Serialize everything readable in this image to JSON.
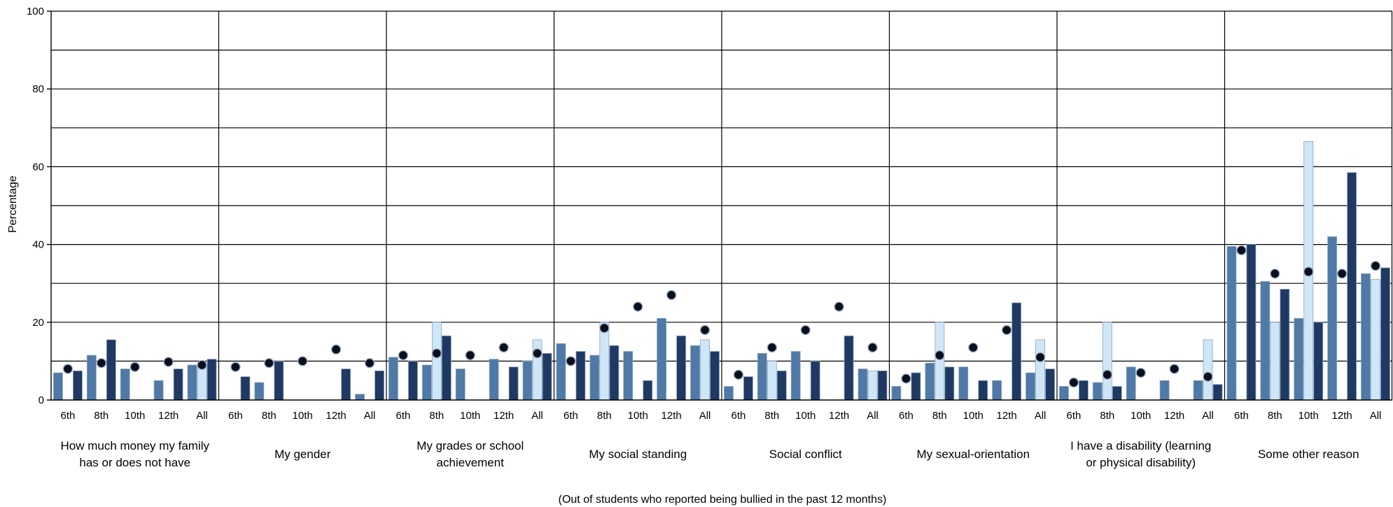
{
  "chart_data": {
    "type": "bar",
    "ylabel": "Percentage",
    "xlabel": "(Out of students who reported being bullied in the past 12 months)",
    "ylim": [
      0,
      100
    ],
    "yticks": [
      "0",
      "20",
      "40",
      "60",
      "80",
      "100"
    ],
    "grid": true,
    "grades": [
      "6th",
      "8th",
      "10th",
      "12th",
      "All"
    ],
    "bar_colors": [
      "#4f79a6",
      "#cfe6f6",
      "#1f3963"
    ],
    "marker_color": "#0a0f1e",
    "groups": [
      {
        "label": [
          "How much money my family",
          "has or does not have"
        ],
        "bars": [
          [
            7,
            0,
            7.5
          ],
          [
            11.5,
            0,
            15.5
          ],
          [
            8,
            0,
            0
          ],
          [
            5,
            0,
            8
          ],
          [
            9,
            8.5,
            10.5
          ]
        ],
        "markers": [
          8,
          9.5,
          8.5,
          9.8,
          9
        ]
      },
      {
        "label": [
          "My gender"
        ],
        "bars": [
          [
            0,
            0,
            6
          ],
          [
            4.5,
            0,
            10
          ],
          [
            0,
            0,
            0
          ],
          [
            0,
            0,
            8
          ],
          [
            1.5,
            0,
            7.5
          ]
        ],
        "markers": [
          8.5,
          9.5,
          10,
          13,
          9.5
        ]
      },
      {
        "label": [
          "My grades or school",
          "achievement"
        ],
        "bars": [
          [
            11,
            0,
            10
          ],
          [
            9,
            20,
            16.5
          ],
          [
            8,
            0,
            0
          ],
          [
            10.5,
            0,
            8.5
          ],
          [
            10,
            15.5,
            12
          ]
        ],
        "markers": [
          11.5,
          12,
          11.5,
          13.5,
          12
        ]
      },
      {
        "label": [
          "My social standing"
        ],
        "bars": [
          [
            14.5,
            0,
            12.5
          ],
          [
            11.5,
            20,
            14
          ],
          [
            12.5,
            0,
            5
          ],
          [
            21,
            0,
            16.5
          ],
          [
            14,
            15.5,
            12.5
          ]
        ],
        "markers": [
          10,
          18.5,
          24,
          27,
          18
        ]
      },
      {
        "label": [
          "Social conflict"
        ],
        "bars": [
          [
            3.5,
            0,
            6
          ],
          [
            12,
            10,
            7.5
          ],
          [
            12.5,
            0,
            10
          ],
          [
            0,
            0,
            16.5
          ],
          [
            8,
            7.5,
            7.5
          ]
        ],
        "markers": [
          6.5,
          13.5,
          18,
          24,
          13.5
        ]
      },
      {
        "label": [
          "My sexual-orientation"
        ],
        "bars": [
          [
            3.5,
            0,
            7
          ],
          [
            9.5,
            20,
            8.5
          ],
          [
            8.5,
            0,
            5
          ],
          [
            5,
            0,
            25
          ],
          [
            7,
            15.5,
            8
          ]
        ],
        "markers": [
          5.5,
          11.5,
          13.5,
          18,
          11
        ]
      },
      {
        "label": [
          "I have a disability (learning",
          "or physical disability)"
        ],
        "bars": [
          [
            3.5,
            0,
            5
          ],
          [
            4.5,
            20,
            3.5
          ],
          [
            8.5,
            0,
            0
          ],
          [
            5,
            0,
            0
          ],
          [
            5,
            15.5,
            4
          ]
        ],
        "markers": [
          4.5,
          6.5,
          7,
          8,
          6
        ]
      },
      {
        "label": [
          "Some other reason"
        ],
        "bars": [
          [
            39.5,
            0,
            40
          ],
          [
            30.5,
            20,
            28.5
          ],
          [
            21,
            66.5,
            20
          ],
          [
            42,
            0,
            58.5
          ],
          [
            32.5,
            31,
            34
          ]
        ],
        "markers": [
          38.5,
          32.5,
          33,
          32.5,
          34.5
        ]
      }
    ]
  }
}
